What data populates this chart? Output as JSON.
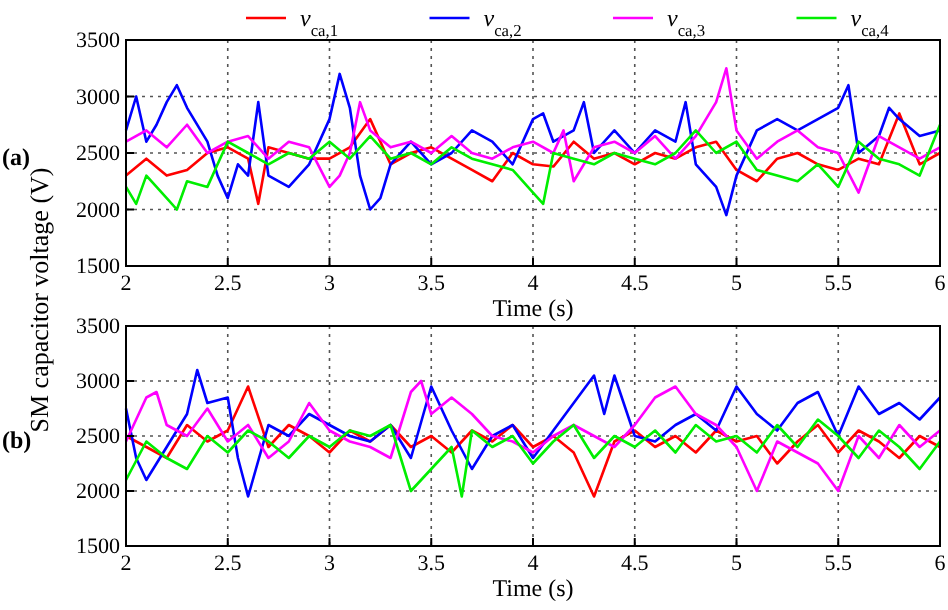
{
  "chart_data": [
    {
      "type": "line",
      "xlabel": "Time (s)",
      "ylabel": "SM capacitor voltage (V)",
      "annotations": [
        "(a)"
      ],
      "xlim": [
        2,
        6
      ],
      "ylim": [
        1500,
        3500
      ],
      "xticks": [
        2,
        2.5,
        3,
        3.5,
        4,
        4.5,
        5,
        5.5,
        6
      ],
      "yticks": [
        1500,
        2000,
        2500,
        3000,
        3500
      ],
      "grid": true,
      "legend": "top",
      "line_style": "solid",
      "marker": "none",
      "series": [
        {
          "name": "v$_{ca,1}$",
          "color": "#ff0000",
          "x": [
            2,
            2.1,
            2.2,
            2.3,
            2.4,
            2.5,
            2.6,
            2.65,
            2.7,
            2.8,
            2.9,
            3,
            3.1,
            3.2,
            3.3,
            3.4,
            3.5,
            3.6,
            3.7,
            3.8,
            3.9,
            4,
            4.1,
            4.2,
            4.3,
            4.4,
            4.5,
            4.6,
            4.7,
            4.8,
            4.9,
            5,
            5.1,
            5.2,
            5.3,
            5.4,
            5.5,
            5.6,
            5.7,
            5.8,
            5.9,
            6
          ],
          "values": [
            2300,
            2450,
            2300,
            2350,
            2500,
            2550,
            2450,
            2050,
            2550,
            2500,
            2450,
            2450,
            2550,
            2800,
            2400,
            2500,
            2550,
            2450,
            2350,
            2250,
            2500,
            2400,
            2380,
            2600,
            2450,
            2500,
            2400,
            2500,
            2450,
            2550,
            2600,
            2350,
            2250,
            2450,
            2500,
            2400,
            2350,
            2450,
            2400,
            2850,
            2400,
            2500
          ]
        },
        {
          "name": "v$_{ca,2}$",
          "color": "#0000ff",
          "x": [
            2,
            2.05,
            2.1,
            2.15,
            2.2,
            2.25,
            2.3,
            2.4,
            2.45,
            2.5,
            2.55,
            2.6,
            2.65,
            2.7,
            2.8,
            2.9,
            3,
            3.05,
            3.1,
            3.15,
            3.2,
            3.25,
            3.3,
            3.4,
            3.5,
            3.6,
            3.7,
            3.8,
            3.9,
            4,
            4.05,
            4.1,
            4.2,
            4.25,
            4.3,
            4.4,
            4.5,
            4.6,
            4.7,
            4.75,
            4.8,
            4.9,
            4.95,
            5,
            5.1,
            5.2,
            5.3,
            5.4,
            5.5,
            5.55,
            5.6,
            5.7,
            5.75,
            5.8,
            5.9,
            6
          ],
          "values": [
            2700,
            3000,
            2600,
            2750,
            2950,
            3100,
            2900,
            2600,
            2300,
            2100,
            2400,
            2300,
            2950,
            2300,
            2200,
            2400,
            2800,
            3200,
            2900,
            2300,
            2000,
            2100,
            2400,
            2600,
            2400,
            2500,
            2700,
            2600,
            2400,
            2800,
            2850,
            2600,
            2700,
            2950,
            2500,
            2700,
            2500,
            2700,
            2600,
            2950,
            2400,
            2200,
            1950,
            2300,
            2700,
            2800,
            2700,
            2800,
            2900,
            3100,
            2500,
            2650,
            2900,
            2800,
            2650,
            2700
          ]
        },
        {
          "name": "v$_{ca,3}$",
          "color": "#ff00ff",
          "x": [
            2,
            2.1,
            2.2,
            2.3,
            2.4,
            2.5,
            2.6,
            2.7,
            2.8,
            2.9,
            3,
            3.05,
            3.1,
            3.15,
            3.2,
            3.3,
            3.4,
            3.5,
            3.6,
            3.7,
            3.8,
            3.9,
            4,
            4.1,
            4.15,
            4.2,
            4.3,
            4.4,
            4.5,
            4.6,
            4.7,
            4.8,
            4.9,
            4.95,
            5,
            5.1,
            5.2,
            5.3,
            5.4,
            5.5,
            5.6,
            5.7,
            5.8,
            5.9,
            6
          ],
          "values": [
            2600,
            2700,
            2550,
            2750,
            2500,
            2600,
            2650,
            2450,
            2600,
            2550,
            2200,
            2300,
            2500,
            2950,
            2700,
            2550,
            2600,
            2500,
            2650,
            2500,
            2450,
            2550,
            2600,
            2500,
            2700,
            2250,
            2550,
            2600,
            2500,
            2650,
            2450,
            2650,
            2950,
            3250,
            2700,
            2450,
            2600,
            2700,
            2550,
            2500,
            2150,
            2650,
            2550,
            2450,
            2550
          ]
        },
        {
          "name": "v$_{ca,4}$",
          "color": "#00ee00",
          "x": [
            2,
            2.05,
            2.1,
            2.2,
            2.25,
            2.3,
            2.4,
            2.5,
            2.6,
            2.7,
            2.8,
            2.9,
            3,
            3.1,
            3.2,
            3.3,
            3.4,
            3.5,
            3.6,
            3.7,
            3.8,
            3.9,
            4,
            4.05,
            4.1,
            4.2,
            4.3,
            4.4,
            4.5,
            4.6,
            4.7,
            4.8,
            4.9,
            5,
            5.1,
            5.2,
            5.3,
            5.4,
            5.5,
            5.6,
            5.7,
            5.8,
            5.9,
            6
          ],
          "values": [
            2200,
            2050,
            2300,
            2100,
            2000,
            2250,
            2200,
            2600,
            2500,
            2400,
            2500,
            2450,
            2600,
            2450,
            2650,
            2450,
            2500,
            2400,
            2550,
            2450,
            2400,
            2350,
            2150,
            2050,
            2500,
            2450,
            2400,
            2500,
            2450,
            2400,
            2500,
            2700,
            2500,
            2600,
            2350,
            2300,
            2250,
            2400,
            2200,
            2600,
            2450,
            2400,
            2300,
            2750
          ]
        }
      ]
    },
    {
      "type": "line",
      "xlabel": "Time (s)",
      "annotations": [
        "(b)"
      ],
      "xlim": [
        2,
        6
      ],
      "ylim": [
        1500,
        3500
      ],
      "xticks": [
        2,
        2.5,
        3,
        3.5,
        4,
        4.5,
        5,
        5.5,
        6
      ],
      "yticks": [
        1500,
        2000,
        2500,
        3000,
        3500
      ],
      "grid": true,
      "line_style": "solid",
      "marker": "none",
      "series": [
        {
          "color": "#ff0000",
          "x": [
            2,
            2.1,
            2.2,
            2.3,
            2.4,
            2.5,
            2.6,
            2.7,
            2.8,
            2.9,
            3,
            3.1,
            3.2,
            3.3,
            3.4,
            3.5,
            3.6,
            3.7,
            3.8,
            3.9,
            4,
            4.1,
            4.2,
            4.3,
            4.4,
            4.5,
            4.6,
            4.7,
            4.8,
            4.9,
            5,
            5.1,
            5.2,
            5.3,
            5.4,
            5.5,
            5.6,
            5.7,
            5.8,
            5.9,
            6
          ],
          "values": [
            2500,
            2400,
            2300,
            2600,
            2450,
            2550,
            2950,
            2400,
            2600,
            2500,
            2350,
            2550,
            2450,
            2600,
            2400,
            2500,
            2350,
            2550,
            2450,
            2600,
            2400,
            2500,
            2350,
            1950,
            2450,
            2550,
            2400,
            2500,
            2350,
            2550,
            2450,
            2500,
            2250,
            2450,
            2600,
            2350,
            2550,
            2450,
            2300,
            2500,
            2400
          ]
        },
        {
          "color": "#0000ff",
          "x": [
            2,
            2.05,
            2.1,
            2.2,
            2.3,
            2.35,
            2.4,
            2.5,
            2.55,
            2.6,
            2.7,
            2.8,
            2.9,
            3,
            3.1,
            3.2,
            3.3,
            3.4,
            3.5,
            3.6,
            3.7,
            3.8,
            3.9,
            4,
            4.1,
            4.2,
            4.3,
            4.35,
            4.4,
            4.5,
            4.6,
            4.7,
            4.8,
            4.9,
            5,
            5.1,
            5.2,
            5.3,
            5.4,
            5.5,
            5.6,
            5.7,
            5.8,
            5.9,
            6
          ],
          "values": [
            2750,
            2300,
            2100,
            2400,
            2700,
            3100,
            2800,
            2850,
            2300,
            1950,
            2600,
            2500,
            2700,
            2600,
            2500,
            2450,
            2600,
            2300,
            2950,
            2550,
            2200,
            2500,
            2600,
            2300,
            2550,
            2800,
            3050,
            2700,
            3050,
            2500,
            2450,
            2600,
            2700,
            2550,
            2950,
            2700,
            2550,
            2800,
            2900,
            2500,
            2950,
            2700,
            2800,
            2650,
            2850
          ]
        },
        {
          "color": "#ff00ff",
          "x": [
            2,
            2.1,
            2.15,
            2.2,
            2.3,
            2.4,
            2.5,
            2.6,
            2.7,
            2.8,
            2.9,
            3,
            3.1,
            3.2,
            3.3,
            3.4,
            3.45,
            3.5,
            3.6,
            3.7,
            3.8,
            3.9,
            4,
            4.1,
            4.2,
            4.3,
            4.4,
            4.5,
            4.6,
            4.7,
            4.8,
            4.9,
            5,
            5.1,
            5.2,
            5.3,
            5.4,
            5.5,
            5.6,
            5.7,
            5.8,
            5.9,
            6
          ],
          "values": [
            2450,
            2850,
            2900,
            2600,
            2500,
            2750,
            2450,
            2600,
            2300,
            2450,
            2800,
            2550,
            2450,
            2400,
            2300,
            2900,
            3000,
            2700,
            2850,
            2700,
            2500,
            2450,
            2350,
            2500,
            2600,
            2500,
            2400,
            2600,
            2850,
            2950,
            2700,
            2600,
            2400,
            2000,
            2450,
            2350,
            2250,
            2000,
            2500,
            2300,
            2600,
            2400,
            2550
          ]
        },
        {
          "color": "#00ee00",
          "x": [
            2,
            2.1,
            2.2,
            2.3,
            2.4,
            2.5,
            2.6,
            2.7,
            2.8,
            2.9,
            3,
            3.1,
            3.2,
            3.3,
            3.4,
            3.5,
            3.6,
            3.65,
            3.7,
            3.8,
            3.9,
            4,
            4.1,
            4.2,
            4.3,
            4.4,
            4.5,
            4.6,
            4.7,
            4.8,
            4.9,
            5,
            5.1,
            5.2,
            5.3,
            5.4,
            5.5,
            5.6,
            5.7,
            5.8,
            5.9,
            6
          ],
          "values": [
            2100,
            2450,
            2300,
            2200,
            2500,
            2350,
            2550,
            2450,
            2300,
            2500,
            2400,
            2550,
            2500,
            2600,
            2000,
            2200,
            2400,
            1950,
            2550,
            2400,
            2500,
            2250,
            2450,
            2600,
            2300,
            2500,
            2400,
            2550,
            2350,
            2600,
            2450,
            2500,
            2350,
            2600,
            2400,
            2650,
            2500,
            2300,
            2550,
            2400,
            2200,
            2450
          ]
        }
      ]
    }
  ]
}
